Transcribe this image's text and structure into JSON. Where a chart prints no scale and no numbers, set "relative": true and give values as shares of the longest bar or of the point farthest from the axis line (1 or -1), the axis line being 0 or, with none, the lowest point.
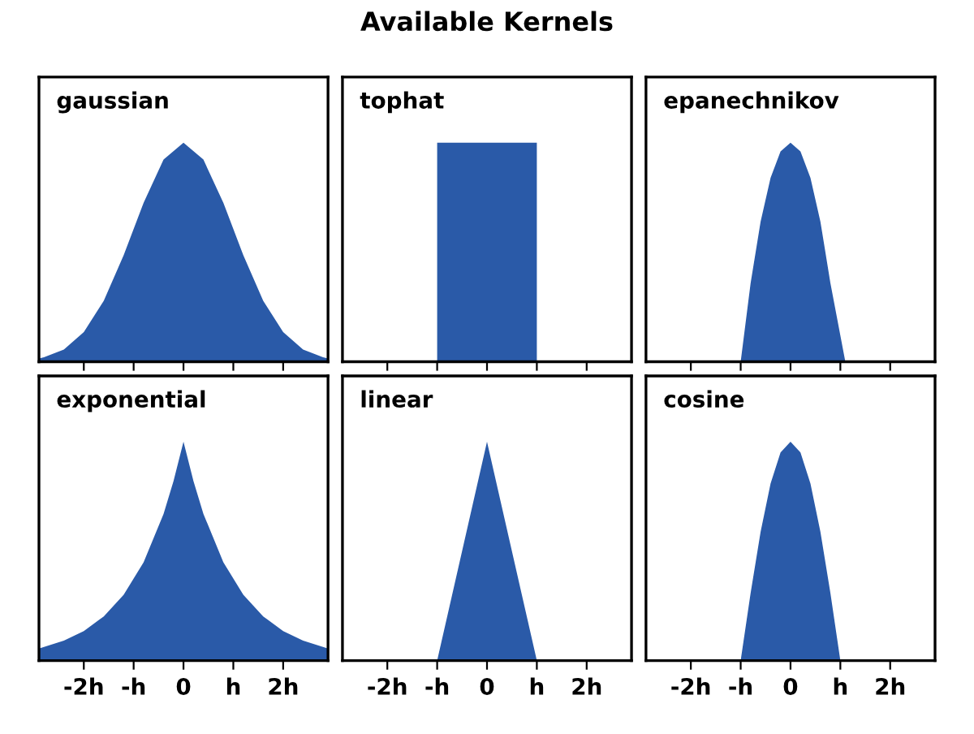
{
  "chart_data": [
    {
      "type": "area",
      "title": "gaussian",
      "annotations": [
        "Available Kernels"
      ],
      "relative": true,
      "color": "#2a5aa8",
      "xlim": [
        -2.9,
        2.9
      ],
      "xticks": [
        {
          "value": -2,
          "label": null
        },
        {
          "value": -1,
          "label": null
        },
        {
          "value": 0,
          "label": null
        },
        {
          "value": 1,
          "label": null
        },
        {
          "value": 2,
          "label": null
        }
      ],
      "tick_labels": false,
      "grid": false,
      "x": [
        -2.9,
        -2.8,
        -2.4,
        -2.0,
        -1.6,
        -1.2,
        -0.8,
        -0.4,
        0,
        0.4,
        0.8,
        1.2,
        1.6,
        2.0,
        2.4,
        2.8,
        2.9
      ],
      "values": [
        0.015,
        0.02,
        0.056,
        0.135,
        0.278,
        0.487,
        0.726,
        0.923,
        1,
        0.923,
        0.726,
        0.487,
        0.278,
        0.135,
        0.056,
        0.02,
        0.015
      ]
    },
    {
      "type": "area",
      "title": "tophat",
      "relative": true,
      "color": "#2a5aa8",
      "xlim": [
        -2.9,
        2.9
      ],
      "xticks": [
        {
          "value": -2,
          "label": null
        },
        {
          "value": -1,
          "label": null
        },
        {
          "value": 0,
          "label": null
        },
        {
          "value": 1,
          "label": null
        },
        {
          "value": 2,
          "label": null
        }
      ],
      "tick_labels": false,
      "grid": false,
      "x": [
        -2.9,
        -1,
        -1,
        1,
        1,
        2.9
      ],
      "values": [
        0,
        0,
        1,
        1,
        0,
        0
      ]
    },
    {
      "type": "area",
      "title": "epanechnikov",
      "relative": true,
      "color": "#2a5aa8",
      "xlim": [
        -2.9,
        2.9
      ],
      "xticks": [
        {
          "value": -2,
          "label": null
        },
        {
          "value": -1,
          "label": null
        },
        {
          "value": 0,
          "label": null
        },
        {
          "value": 1,
          "label": null
        },
        {
          "value": 2,
          "label": null
        }
      ],
      "tick_labels": false,
      "grid": false,
      "x": [
        -2.9,
        -1,
        -0.8,
        -0.6,
        -0.4,
        -0.2,
        0,
        0.2,
        0.4,
        0.6,
        0.8,
        1.1,
        2.9
      ],
      "values": [
        0,
        0,
        0.36,
        0.64,
        0.84,
        0.96,
        1,
        0.96,
        0.84,
        0.64,
        0.36,
        0,
        0
      ]
    },
    {
      "type": "area",
      "title": "exponential",
      "relative": true,
      "color": "#2a5aa8",
      "xlim": [
        -2.9,
        2.9
      ],
      "xticks": [
        {
          "value": -2,
          "label": "-2h"
        },
        {
          "value": -1,
          "label": "-h"
        },
        {
          "value": 0,
          "label": "0"
        },
        {
          "value": 1,
          "label": "h"
        },
        {
          "value": 2,
          "label": "2h"
        }
      ],
      "tick_labels": "x",
      "grid": false,
      "x": [
        -2.9,
        -2.4,
        -2.0,
        -1.6,
        -1.2,
        -0.8,
        -0.4,
        -0.2,
        0,
        0.2,
        0.4,
        0.8,
        1.2,
        1.6,
        2.0,
        2.4,
        2.9
      ],
      "values": [
        0.055,
        0.091,
        0.135,
        0.202,
        0.301,
        0.449,
        0.67,
        0.82,
        1,
        0.82,
        0.67,
        0.449,
        0.301,
        0.202,
        0.135,
        0.091,
        0.055
      ]
    },
    {
      "type": "area",
      "title": "linear",
      "relative": true,
      "color": "#2a5aa8",
      "xlim": [
        -2.9,
        2.9
      ],
      "xticks": [
        {
          "value": -2,
          "label": "-2h"
        },
        {
          "value": -1,
          "label": "-h"
        },
        {
          "value": 0,
          "label": "0"
        },
        {
          "value": 1,
          "label": "h"
        },
        {
          "value": 2,
          "label": "2h"
        }
      ],
      "tick_labels": "x",
      "grid": false,
      "x": [
        -2.9,
        -1,
        0,
        1,
        2.9
      ],
      "values": [
        0,
        0,
        1,
        0,
        0
      ]
    },
    {
      "type": "area",
      "title": "cosine",
      "relative": true,
      "color": "#2a5aa8",
      "xlim": [
        -2.9,
        2.9
      ],
      "xticks": [
        {
          "value": -2,
          "label": "-2h"
        },
        {
          "value": -1,
          "label": "-h"
        },
        {
          "value": 0,
          "label": "0"
        },
        {
          "value": 1,
          "label": "h"
        },
        {
          "value": 2,
          "label": "2h"
        }
      ],
      "tick_labels": "x",
      "grid": false,
      "x": [
        -2.9,
        -1,
        -0.8,
        -0.6,
        -0.4,
        -0.2,
        0,
        0.2,
        0.4,
        0.6,
        0.8,
        1,
        2.9
      ],
      "values": [
        0,
        0,
        0.309,
        0.588,
        0.809,
        0.951,
        1,
        0.951,
        0.809,
        0.588,
        0.309,
        0,
        0
      ]
    }
  ]
}
